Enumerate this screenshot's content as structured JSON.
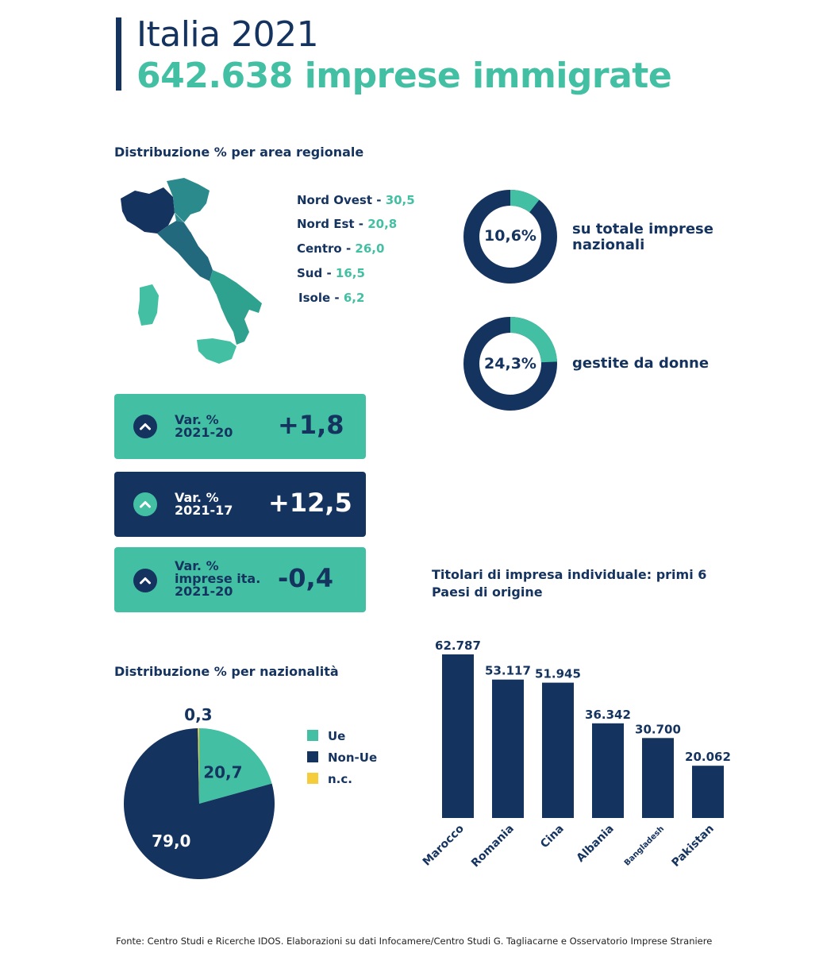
{
  "header": {
    "title": "Italia 2021",
    "subtitle": "642.638 imprese immigrate"
  },
  "regions": {
    "title": "Distribuzione % per area regionale",
    "items": [
      {
        "name": "Nord Ovest - ",
        "value": "30,5"
      },
      {
        "name": "Nord Est - ",
        "value": "20,8"
      },
      {
        "name": "Centro - ",
        "value": "26,0"
      },
      {
        "name": "Sud - ",
        "value": "16,5"
      },
      {
        "name": "Isole - ",
        "value": "6,2"
      }
    ]
  },
  "donuts": [
    {
      "value": 10.6,
      "label_value": "10,6%",
      "caption": "su totale imprese nazionali"
    },
    {
      "value": 24.3,
      "label_value": "24,3%",
      "caption": "gestite da donne"
    }
  ],
  "variations": [
    {
      "label": "Var. %\n2021-20",
      "value": "+1,8",
      "theme": "green"
    },
    {
      "label": "Var. %\n2021-17",
      "value": "+12,5",
      "theme": "navy"
    },
    {
      "label": "Var. %\nimprese ita.\n2021-20",
      "value": "-0,4",
      "theme": "green"
    }
  ],
  "colors": {
    "navy": "#15335f",
    "teal": "#43c0a3",
    "yellow": "#f5cd3c"
  },
  "chart_data": [
    {
      "type": "pie",
      "title": "Distribuzione % per nazionalità",
      "categories": [
        "Ue",
        "Non-Ue",
        "n.c."
      ],
      "values": [
        20.7,
        79.0,
        0.3
      ],
      "value_labels": [
        "20,7",
        "79,0",
        "0,3"
      ],
      "colors": [
        "#43c0a3",
        "#15335f",
        "#f5cd3c"
      ],
      "legend": "right"
    },
    {
      "type": "bar",
      "title": "Titolari di impresa individuale: primi 6 Paesi di origine",
      "categories": [
        "Marocco",
        "Romania",
        "Cina",
        "Albania",
        "Bangladesh",
        "Pakistan"
      ],
      "values": [
        62787,
        53117,
        51945,
        36342,
        30700,
        20062
      ],
      "value_labels": [
        "62.787",
        "53.117",
        "51.945",
        "36.342",
        "30.700",
        "20.062"
      ],
      "color": "#15335f"
    }
  ],
  "footer": "Fonte: Centro Studi e Ricerche IDOS. Elaborazioni su dati Infocamere/Centro Studi G. Tagliacarne e Osservatorio Imprese Straniere"
}
